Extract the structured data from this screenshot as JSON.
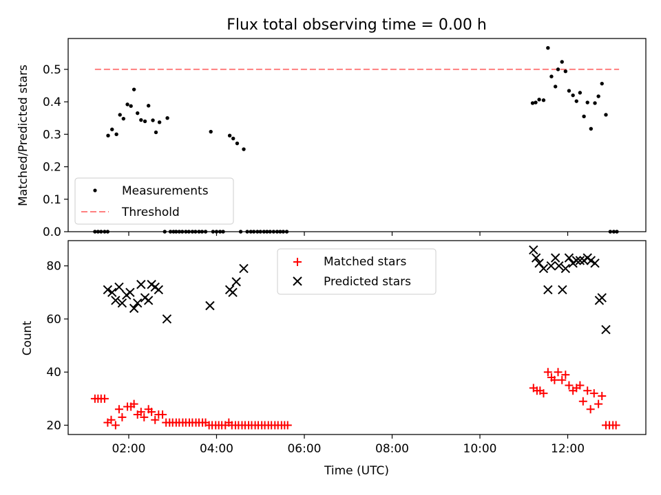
{
  "title": "Flux total observing time = 0.00 h",
  "colors": {
    "measurement": "#000000",
    "threshold": "#ff7f7f",
    "matched": "#ff0000",
    "predicted": "#000000"
  },
  "chart_data": [
    {
      "type": "scatter",
      "ylabel": "Matched/Predicted stars",
      "ylim": [
        0,
        0.595
      ],
      "yticks": [
        "0.0",
        "0.1",
        "0.2",
        "0.3",
        "0.4",
        "0.5"
      ],
      "xlim": [
        0.62,
        13.78
      ],
      "grid": false,
      "legend_position": "lower-left",
      "threshold": {
        "name": "Threshold",
        "value": 0.5,
        "x": [
          1.23,
          13.17
        ],
        "style": "dashed"
      },
      "series": [
        {
          "name": "Measurements",
          "marker": "dot",
          "points": [
            [
              1.23,
              0
            ],
            [
              1.3,
              0
            ],
            [
              1.37,
              0
            ],
            [
              1.45,
              0
            ],
            [
              1.52,
              0
            ],
            [
              1.53,
              0.296
            ],
            [
              1.62,
              0.315
            ],
            [
              1.72,
              0.3
            ],
            [
              1.8,
              0.36
            ],
            [
              1.88,
              0.348
            ],
            [
              1.97,
              0.392
            ],
            [
              2.05,
              0.387
            ],
            [
              2.12,
              0.438
            ],
            [
              2.2,
              0.365
            ],
            [
              2.28,
              0.344
            ],
            [
              2.37,
              0.34
            ],
            [
              2.45,
              0.388
            ],
            [
              2.55,
              0.343
            ],
            [
              2.62,
              0.306
            ],
            [
              2.7,
              0.337
            ],
            [
              2.82,
              0
            ],
            [
              2.88,
              0.35
            ],
            [
              2.95,
              0
            ],
            [
              3.02,
              0
            ],
            [
              3.08,
              0
            ],
            [
              3.15,
              0
            ],
            [
              3.22,
              0
            ],
            [
              3.3,
              0
            ],
            [
              3.37,
              0
            ],
            [
              3.45,
              0
            ],
            [
              3.52,
              0
            ],
            [
              3.6,
              0
            ],
            [
              3.67,
              0
            ],
            [
              3.75,
              0
            ],
            [
              3.87,
              0.308
            ],
            [
              3.92,
              0
            ],
            [
              4.0,
              0
            ],
            [
              4.08,
              0
            ],
            [
              4.15,
              0
            ],
            [
              4.3,
              0.296
            ],
            [
              4.38,
              0.287
            ],
            [
              4.47,
              0.272
            ],
            [
              4.62,
              0.254
            ],
            [
              4.55,
              0
            ],
            [
              4.7,
              0
            ],
            [
              4.78,
              0
            ],
            [
              4.85,
              0
            ],
            [
              4.93,
              0
            ],
            [
              5.0,
              0
            ],
            [
              5.08,
              0
            ],
            [
              5.15,
              0
            ],
            [
              5.22,
              0
            ],
            [
              5.3,
              0
            ],
            [
              5.38,
              0
            ],
            [
              5.45,
              0
            ],
            [
              5.52,
              0
            ],
            [
              5.6,
              0
            ],
            [
              11.2,
              0.396
            ],
            [
              11.27,
              0.398
            ],
            [
              11.35,
              0.407
            ],
            [
              11.45,
              0.405
            ],
            [
              11.55,
              0.566
            ],
            [
              11.63,
              0.478
            ],
            [
              11.72,
              0.447
            ],
            [
              11.78,
              0.5
            ],
            [
              11.87,
              0.523
            ],
            [
              11.95,
              0.494
            ],
            [
              12.03,
              0.434
            ],
            [
              12.12,
              0.42
            ],
            [
              12.2,
              0.402
            ],
            [
              12.28,
              0.428
            ],
            [
              12.37,
              0.355
            ],
            [
              12.45,
              0.398
            ],
            [
              12.53,
              0.317
            ],
            [
              12.62,
              0.396
            ],
            [
              12.7,
              0.417
            ],
            [
              12.78,
              0.456
            ],
            [
              12.87,
              0.36
            ],
            [
              12.97,
              0
            ],
            [
              13.05,
              0
            ],
            [
              13.12,
              0
            ]
          ]
        }
      ]
    },
    {
      "type": "scatter",
      "ylabel": "Count",
      "xlabel": "Time (UTC)",
      "ylim": [
        16.5,
        89.5
      ],
      "yticks": [
        "20",
        "40",
        "60",
        "80"
      ],
      "xlim": [
        0.62,
        13.78
      ],
      "xticks": [
        "02:00",
        "04:00",
        "06:00",
        "08:00",
        "10:00",
        "12:00"
      ],
      "xtick_values": [
        2,
        4,
        6,
        8,
        10,
        12
      ],
      "grid": false,
      "legend_position": "upper-center",
      "series": [
        {
          "name": "Matched stars",
          "marker": "plus",
          "points": [
            [
              1.23,
              30
            ],
            [
              1.3,
              30
            ],
            [
              1.37,
              30
            ],
            [
              1.45,
              30
            ],
            [
              1.52,
              21
            ],
            [
              1.6,
              22
            ],
            [
              1.7,
              20
            ],
            [
              1.78,
              26
            ],
            [
              1.85,
              23
            ],
            [
              1.97,
              27
            ],
            [
              2.05,
              27
            ],
            [
              2.12,
              28
            ],
            [
              2.2,
              24
            ],
            [
              2.28,
              25
            ],
            [
              2.35,
              23
            ],
            [
              2.45,
              26
            ],
            [
              2.52,
              25
            ],
            [
              2.6,
              22
            ],
            [
              2.68,
              24
            ],
            [
              2.77,
              24
            ],
            [
              2.85,
              21
            ],
            [
              2.93,
              21
            ],
            [
              3.0,
              21
            ],
            [
              3.08,
              21
            ],
            [
              3.15,
              21
            ],
            [
              3.23,
              21
            ],
            [
              3.3,
              21
            ],
            [
              3.38,
              21
            ],
            [
              3.45,
              21
            ],
            [
              3.53,
              21
            ],
            [
              3.6,
              21
            ],
            [
              3.68,
              21
            ],
            [
              3.75,
              21
            ],
            [
              3.83,
              20
            ],
            [
              3.9,
              20
            ],
            [
              3.98,
              20
            ],
            [
              4.05,
              20
            ],
            [
              4.12,
              20
            ],
            [
              4.2,
              20
            ],
            [
              4.28,
              21
            ],
            [
              4.35,
              20
            ],
            [
              4.43,
              20
            ],
            [
              4.5,
              20
            ],
            [
              4.58,
              20
            ],
            [
              4.65,
              20
            ],
            [
              4.73,
              20
            ],
            [
              4.8,
              20
            ],
            [
              4.88,
              20
            ],
            [
              4.95,
              20
            ],
            [
              5.03,
              20
            ],
            [
              5.1,
              20
            ],
            [
              5.18,
              20
            ],
            [
              5.25,
              20
            ],
            [
              5.33,
              20
            ],
            [
              5.4,
              20
            ],
            [
              5.48,
              20
            ],
            [
              5.55,
              20
            ],
            [
              5.62,
              20
            ],
            [
              11.22,
              34
            ],
            [
              11.3,
              33
            ],
            [
              11.37,
              33
            ],
            [
              11.45,
              32
            ],
            [
              11.55,
              40
            ],
            [
              11.63,
              38
            ],
            [
              11.7,
              37
            ],
            [
              11.78,
              40
            ],
            [
              11.87,
              37
            ],
            [
              11.95,
              39
            ],
            [
              12.03,
              35
            ],
            [
              12.12,
              33
            ],
            [
              12.2,
              34
            ],
            [
              12.28,
              35
            ],
            [
              12.35,
              29
            ],
            [
              12.45,
              33
            ],
            [
              12.52,
              26
            ],
            [
              12.6,
              32
            ],
            [
              12.7,
              28
            ],
            [
              12.78,
              31
            ],
            [
              12.87,
              20
            ],
            [
              12.95,
              20
            ],
            [
              13.03,
              20
            ],
            [
              13.1,
              20
            ]
          ]
        },
        {
          "name": "Predicted stars",
          "marker": "x",
          "points": [
            [
              1.52,
              71
            ],
            [
              1.62,
              70
            ],
            [
              1.7,
              67
            ],
            [
              1.78,
              72
            ],
            [
              1.85,
              66
            ],
            [
              1.95,
              69
            ],
            [
              2.03,
              70
            ],
            [
              2.12,
              64
            ],
            [
              2.2,
              66
            ],
            [
              2.28,
              73
            ],
            [
              2.37,
              68
            ],
            [
              2.45,
              67
            ],
            [
              2.52,
              73
            ],
            [
              2.6,
              72
            ],
            [
              2.68,
              71
            ],
            [
              2.87,
              60
            ],
            [
              3.85,
              65
            ],
            [
              4.3,
              71
            ],
            [
              4.37,
              70
            ],
            [
              4.45,
              74
            ],
            [
              4.62,
              79
            ],
            [
              11.22,
              86
            ],
            [
              11.28,
              83
            ],
            [
              11.35,
              81
            ],
            [
              11.45,
              79
            ],
            [
              11.55,
              71
            ],
            [
              11.62,
              80
            ],
            [
              11.72,
              83
            ],
            [
              11.8,
              80
            ],
            [
              11.88,
              71
            ],
            [
              11.95,
              79
            ],
            [
              12.03,
              83
            ],
            [
              12.12,
              81
            ],
            [
              12.2,
              82
            ],
            [
              12.28,
              82
            ],
            [
              12.37,
              82
            ],
            [
              12.45,
              83
            ],
            [
              12.53,
              82
            ],
            [
              12.62,
              81
            ],
            [
              12.72,
              67
            ],
            [
              12.78,
              68
            ],
            [
              12.87,
              56
            ]
          ]
        }
      ]
    }
  ]
}
